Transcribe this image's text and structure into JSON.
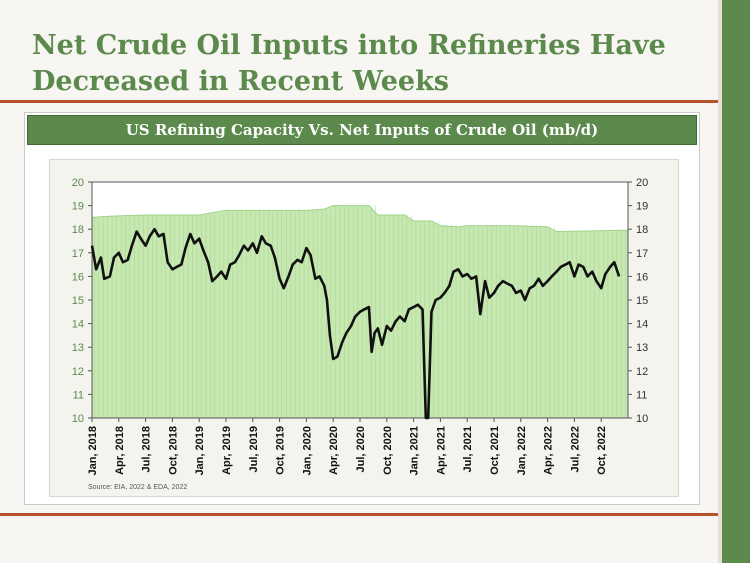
{
  "slide": {
    "title": "Net Crude Oil Inputs into Refineries Have Decreased in Recent Weeks",
    "source": "Source: EIA, 2022 & EDA, 2022"
  },
  "colors": {
    "accent": "#5b8a4c",
    "rule": "#b5522c",
    "capacity_fill": "#c8e8b2",
    "capacity_line": "#9fd38a",
    "net_inputs_line": "#111111",
    "axis_label": "#5b8a4c"
  },
  "chart_data": {
    "type": "area",
    "title": "US Refining Capacity Vs. Net Inputs of Crude Oil (mb/d)",
    "xlabel": "",
    "ylabel": "",
    "ylim": [
      10,
      20
    ],
    "yticks": [
      10,
      11,
      12,
      13,
      14,
      15,
      16,
      17,
      18,
      19,
      20
    ],
    "x_range": [
      "2018-01",
      "2022-12"
    ],
    "x_ticks": [
      "Jan, 2018",
      "Apr, 2018",
      "Jul, 2018",
      "Oct, 2018",
      "Jan, 2019",
      "Apr, 2019",
      "Jul, 2019",
      "Oct, 2019",
      "Jan, 2020",
      "Apr, 2020",
      "Jul, 2020",
      "Oct, 2020",
      "Jan, 2021",
      "Apr, 2021",
      "Jul, 2021",
      "Oct, 2021",
      "Jan, 2022",
      "Apr, 2022",
      "Jul, 2022",
      "Oct, 2022"
    ],
    "grid": false,
    "legend": "none",
    "series": [
      {
        "kind": "area",
        "points": [
          [
            "2018-01",
            18.5
          ],
          [
            "2018-03",
            18.55
          ],
          [
            "2018-05",
            18.58
          ],
          [
            "2018-07",
            18.6
          ],
          [
            "2018-10",
            18.6
          ],
          [
            "2019-01",
            18.6
          ],
          [
            "2019-04",
            18.8
          ],
          [
            "2019-07",
            18.8
          ],
          [
            "2019-10",
            18.8
          ],
          [
            "2020-01",
            18.8
          ],
          [
            "2020-03",
            18.85
          ],
          [
            "2020-04",
            19.0
          ],
          [
            "2020-08",
            19.0
          ],
          [
            "2020-09",
            18.6
          ],
          [
            "2020-12",
            18.6
          ],
          [
            "2021-01",
            18.35
          ],
          [
            "2021-03",
            18.35
          ],
          [
            "2021-04",
            18.15
          ],
          [
            "2021-06",
            18.1
          ],
          [
            "2021-07",
            18.15
          ],
          [
            "2021-12",
            18.15
          ],
          [
            "2022-04",
            18.1
          ],
          [
            "2022-05",
            17.9
          ],
          [
            "2022-12",
            17.95
          ]
        ]
      },
      {
        "kind": "line",
        "points": [
          [
            "2018-01",
            17.3
          ],
          [
            "2018-01-15",
            16.3
          ],
          [
            "2018-02",
            16.8
          ],
          [
            "2018-02-12",
            15.9
          ],
          [
            "2018-03",
            16.0
          ],
          [
            "2018-03-15",
            16.8
          ],
          [
            "2018-04",
            17.0
          ],
          [
            "2018-04-15",
            16.6
          ],
          [
            "2018-05",
            16.7
          ],
          [
            "2018-05-15",
            17.3
          ],
          [
            "2018-06",
            17.9
          ],
          [
            "2018-06-15",
            17.6
          ],
          [
            "2018-07",
            17.3
          ],
          [
            "2018-07-15",
            17.7
          ],
          [
            "2018-08",
            18.0
          ],
          [
            "2018-08-15",
            17.7
          ],
          [
            "2018-09",
            17.8
          ],
          [
            "2018-09-15",
            16.6
          ],
          [
            "2018-10",
            16.3
          ],
          [
            "2018-10-15",
            16.4
          ],
          [
            "2018-11",
            16.5
          ],
          [
            "2018-11-15",
            17.2
          ],
          [
            "2018-12",
            17.8
          ],
          [
            "2018-12-15",
            17.4
          ],
          [
            "2019-01",
            17.6
          ],
          [
            "2019-01-15",
            17.1
          ],
          [
            "2019-02",
            16.6
          ],
          [
            "2019-02-15",
            15.8
          ],
          [
            "2019-03",
            16.0
          ],
          [
            "2019-03-15",
            16.2
          ],
          [
            "2019-04",
            15.9
          ],
          [
            "2019-04-15",
            16.5
          ],
          [
            "2019-05",
            16.6
          ],
          [
            "2019-05-15",
            16.9
          ],
          [
            "2019-06",
            17.3
          ],
          [
            "2019-06-15",
            17.1
          ],
          [
            "2019-07",
            17.4
          ],
          [
            "2019-07-15",
            17.0
          ],
          [
            "2019-08",
            17.7
          ],
          [
            "2019-08-15",
            17.4
          ],
          [
            "2019-09",
            17.3
          ],
          [
            "2019-09-15",
            16.8
          ],
          [
            "2019-10",
            15.9
          ],
          [
            "2019-10-15",
            15.5
          ],
          [
            "2019-11",
            16.0
          ],
          [
            "2019-11-15",
            16.5
          ],
          [
            "2019-12",
            16.7
          ],
          [
            "2019-12-15",
            16.6
          ],
          [
            "2020-01",
            17.2
          ],
          [
            "2020-01-15",
            16.9
          ],
          [
            "2020-02",
            15.9
          ],
          [
            "2020-02-15",
            16.0
          ],
          [
            "2020-03",
            15.6
          ],
          [
            "2020-03-10",
            15.0
          ],
          [
            "2020-03-20",
            13.5
          ],
          [
            "2020-04",
            12.5
          ],
          [
            "2020-04-15",
            12.6
          ],
          [
            "2020-05",
            13.2
          ],
          [
            "2020-05-15",
            13.6
          ],
          [
            "2020-06",
            13.9
          ],
          [
            "2020-06-15",
            14.3
          ],
          [
            "2020-07",
            14.5
          ],
          [
            "2020-07-15",
            14.6
          ],
          [
            "2020-08",
            14.7
          ],
          [
            "2020-08-10",
            12.8
          ],
          [
            "2020-08-20",
            13.6
          ],
          [
            "2020-09",
            13.8
          ],
          [
            "2020-09-15",
            13.1
          ],
          [
            "2020-10",
            13.9
          ],
          [
            "2020-10-15",
            13.7
          ],
          [
            "2020-11",
            14.1
          ],
          [
            "2020-11-15",
            14.3
          ],
          [
            "2020-12",
            14.1
          ],
          [
            "2020-12-15",
            14.6
          ],
          [
            "2021-01",
            14.7
          ],
          [
            "2021-01-15",
            14.8
          ],
          [
            "2021-02",
            14.6
          ],
          [
            "2021-02-12",
            10.0
          ],
          [
            "2021-02-20",
            10.0
          ],
          [
            "2021-03",
            14.5
          ],
          [
            "2021-03-15",
            15.0
          ],
          [
            "2021-04",
            15.1
          ],
          [
            "2021-04-15",
            15.3
          ],
          [
            "2021-05",
            15.6
          ],
          [
            "2021-05-15",
            16.2
          ],
          [
            "2021-06",
            16.3
          ],
          [
            "2021-06-15",
            16.0
          ],
          [
            "2021-07",
            16.1
          ],
          [
            "2021-07-15",
            15.9
          ],
          [
            "2021-08",
            16.0
          ],
          [
            "2021-08-15",
            14.4
          ],
          [
            "2021-09",
            15.8
          ],
          [
            "2021-09-15",
            15.1
          ],
          [
            "2021-10",
            15.3
          ],
          [
            "2021-10-15",
            15.6
          ],
          [
            "2021-11",
            15.8
          ],
          [
            "2021-11-15",
            15.7
          ],
          [
            "2021-12",
            15.6
          ],
          [
            "2021-12-15",
            15.3
          ],
          [
            "2022-01",
            15.4
          ],
          [
            "2022-01-15",
            15.0
          ],
          [
            "2022-02",
            15.5
          ],
          [
            "2022-02-15",
            15.6
          ],
          [
            "2022-03",
            15.9
          ],
          [
            "2022-03-15",
            15.6
          ],
          [
            "2022-04",
            15.8
          ],
          [
            "2022-04-15",
            16.0
          ],
          [
            "2022-05",
            16.2
          ],
          [
            "2022-05-15",
            16.4
          ],
          [
            "2022-06",
            16.5
          ],
          [
            "2022-06-15",
            16.6
          ],
          [
            "2022-07",
            16.0
          ],
          [
            "2022-07-15",
            16.5
          ],
          [
            "2022-08",
            16.4
          ],
          [
            "2022-08-15",
            16.0
          ],
          [
            "2022-09",
            16.2
          ],
          [
            "2022-09-15",
            15.8
          ],
          [
            "2022-10",
            15.5
          ],
          [
            "2022-10-15",
            16.1
          ],
          [
            "2022-11",
            16.4
          ],
          [
            "2022-11-15",
            16.6
          ],
          [
            "2022-12",
            16.0
          ]
        ]
      }
    ]
  }
}
